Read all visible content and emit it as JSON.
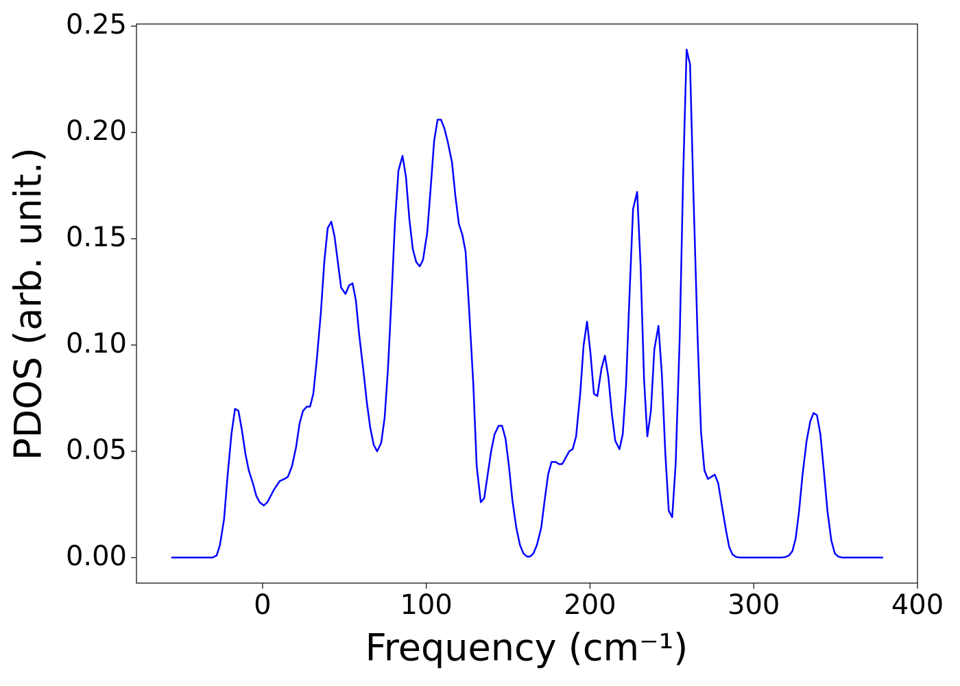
{
  "chart_data": {
    "type": "line",
    "xlabel": "Frequency (cm⁻¹)",
    "ylabel": "PDOS (arb. unit.)",
    "xlim": [
      -77,
      400
    ],
    "ylim": [
      -0.012,
      0.251
    ],
    "xticks": [
      0,
      100,
      200,
      300,
      400
    ],
    "yticks": [
      {
        "value": 0,
        "label": "0.00"
      },
      0.05,
      {
        "value": 0.1,
        "label": "0.10"
      },
      0.15,
      {
        "value": 0.2,
        "label": "0.20"
      },
      0.25
    ],
    "grid": false,
    "series": [
      {
        "name": "PDOS",
        "color": "#0000ff",
        "x": [
          -55.7,
          -30.6,
          -28,
          -26,
          -23.5,
          -21.4,
          -19,
          -16.8,
          -14.7,
          -12.6,
          -10.5,
          -8.4,
          -5.9,
          -3.8,
          -1.7,
          0.8,
          2.9,
          5,
          7,
          10.5,
          13.4,
          15.5,
          18,
          20.5,
          22.6,
          24.7,
          27,
          29,
          31,
          33,
          35.6,
          37.7,
          39.8,
          42,
          44,
          46,
          48,
          50.7,
          52.8,
          55,
          57,
          59,
          61.6,
          63.7,
          65.8,
          67.9,
          70,
          72.5,
          74.6,
          76.7,
          78.8,
          80.9,
          83,
          85.5,
          87.6,
          89.7,
          91.8,
          93.9,
          96,
          98,
          100.6,
          102.7,
          104.8,
          106.9,
          109,
          111,
          113,
          115.7,
          117.8,
          119.9,
          122,
          124,
          126,
          128.7,
          130.8,
          133.3,
          135.4,
          137.5,
          139.6,
          141.7,
          144.2,
          146.3,
          148.4,
          150.5,
          152.6,
          155,
          157.2,
          159.3,
          161.4,
          163.5,
          165.5,
          167.6,
          170.2,
          172.3,
          174.4,
          176.5,
          179,
          181,
          183,
          185.2,
          187.3,
          189.4,
          191.5,
          194,
          196.1,
          198.2,
          200.3,
          202.4,
          204.5,
          207,
          209.1,
          211.2,
          213.3,
          215.4,
          218,
          220,
          222,
          224.2,
          226.3,
          228.8,
          230.9,
          233,
          235,
          237.2,
          239.3,
          241.8,
          243.9,
          246,
          248.1,
          250.2,
          252.3,
          254.8,
          256.9,
          259,
          261.1,
          263.2,
          265.7,
          267.8,
          269.9,
          272,
          274.1,
          276.2,
          278.3,
          280.4,
          283,
          285,
          287,
          289.2,
          292,
          317,
          319.4,
          321.5,
          323.6,
          325.6,
          327.7,
          329.8,
          332.3,
          334.5,
          336.5,
          338.6,
          340.7,
          342.8,
          345,
          347.4,
          349.5,
          351.6,
          354,
          379
        ],
        "values": [
          0,
          0,
          0.001,
          0.006,
          0.018,
          0.038,
          0.058,
          0.07,
          0.069,
          0.06,
          0.049,
          0.041,
          0.035,
          0.029,
          0.026,
          0.0245,
          0.026,
          0.029,
          0.032,
          0.036,
          0.037,
          0.038,
          0.043,
          0.052,
          0.063,
          0.069,
          0.071,
          0.071,
          0.077,
          0.092,
          0.115,
          0.139,
          0.155,
          0.158,
          0.151,
          0.139,
          0.127,
          0.124,
          0.128,
          0.129,
          0.121,
          0.105,
          0.088,
          0.073,
          0.061,
          0.053,
          0.05,
          0.054,
          0.066,
          0.09,
          0.123,
          0.158,
          0.182,
          0.189,
          0.179,
          0.159,
          0.145,
          0.139,
          0.137,
          0.14,
          0.153,
          0.174,
          0.196,
          0.206,
          0.206,
          0.202,
          0.196,
          0.186,
          0.17,
          0.157,
          0.152,
          0.144,
          0.119,
          0.082,
          0.043,
          0.026,
          0.028,
          0.039,
          0.05,
          0.058,
          0.062,
          0.062,
          0.056,
          0.043,
          0.027,
          0.014,
          0.006,
          0.002,
          0.0005,
          0.0005,
          0.002,
          0.006,
          0.014,
          0.027,
          0.039,
          0.045,
          0.045,
          0.044,
          0.044,
          0.047,
          0.05,
          0.051,
          0.057,
          0.077,
          0.1,
          0.111,
          0.096,
          0.077,
          0.076,
          0.089,
          0.095,
          0.085,
          0.068,
          0.055,
          0.051,
          0.058,
          0.081,
          0.125,
          0.164,
          0.172,
          0.137,
          0.084,
          0.057,
          0.069,
          0.098,
          0.109,
          0.086,
          0.049,
          0.022,
          0.019,
          0.044,
          0.104,
          0.18,
          0.239,
          0.232,
          0.17,
          0.104,
          0.059,
          0.041,
          0.037,
          0.038,
          0.039,
          0.035,
          0.025,
          0.013,
          0.005,
          0.0015,
          0.0003,
          0,
          0,
          0.0003,
          0.001,
          0.003,
          0.009,
          0.022,
          0.039,
          0.055,
          0.064,
          0.068,
          0.067,
          0.058,
          0.041,
          0.022,
          0.008,
          0.002,
          0.0005,
          0,
          0
        ]
      }
    ]
  }
}
